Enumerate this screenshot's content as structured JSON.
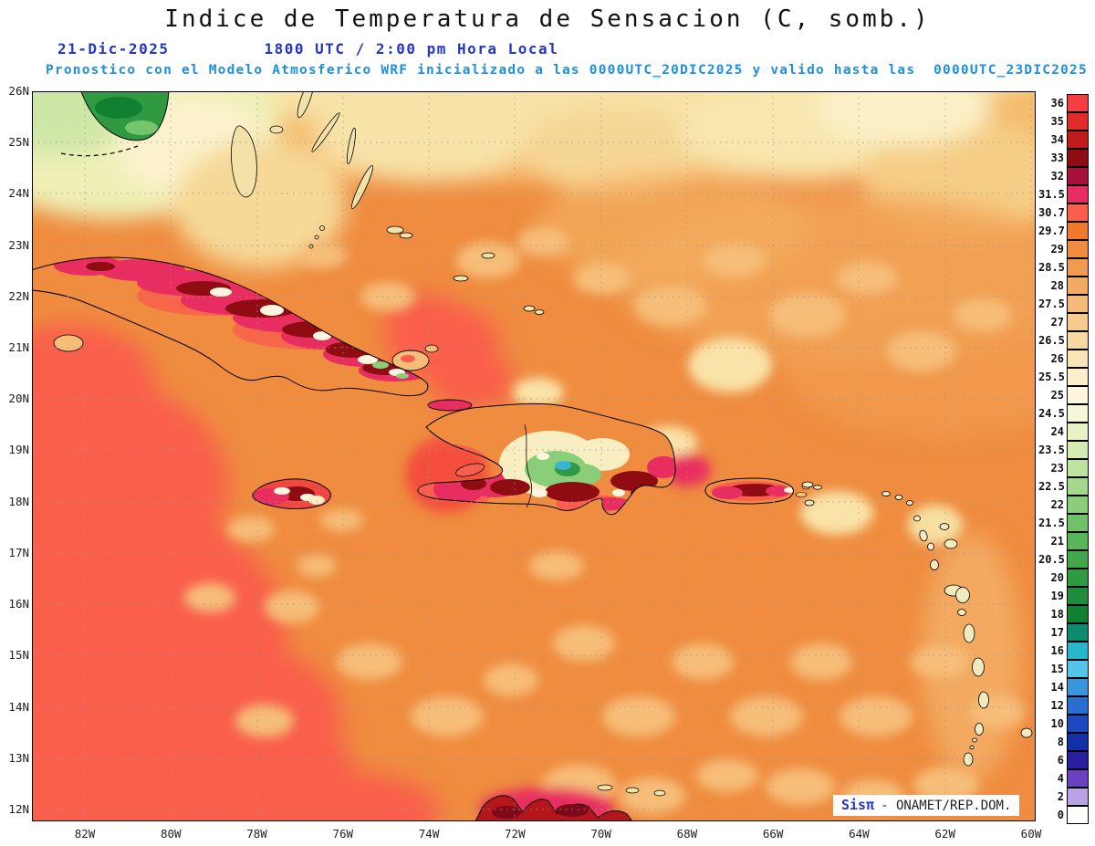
{
  "header": {
    "title": "Indice de Temperatura de Sensacion (C, somb.)",
    "date": "21-Dic-2025",
    "time": "1800 UTC / 2:00 pm Hora Local",
    "forecast": "Pronostico con el Modelo Atmosferico WRF inicializado a las 0000UTC_20DIC2025 y valido hasta las  0000UTC_23DIC2025"
  },
  "colors": {
    "date_line": "#2336c4",
    "forecast_line": "#1d8fe0",
    "brand": "#2336c4",
    "dominant_field": "#ef8c3f"
  },
  "axes": {
    "lat_labels": [
      "26N",
      "25N",
      "24N",
      "23N",
      "22N",
      "21N",
      "20N",
      "19N",
      "18N",
      "17N",
      "16N",
      "15N",
      "14N",
      "13N",
      "12N"
    ],
    "lon_labels": [
      "82W",
      "80W",
      "78W",
      "76W",
      "74W",
      "72W",
      "70W",
      "68W",
      "66W",
      "64W",
      "62W",
      "60W"
    ]
  },
  "colorbar": {
    "entries": [
      {
        "value": "36",
        "color": "#f73e3e"
      },
      {
        "value": "35",
        "color": "#e22c2c"
      },
      {
        "value": "34",
        "color": "#c11b1b"
      },
      {
        "value": "33",
        "color": "#8f0d12"
      },
      {
        "value": "32",
        "color": "#a8113c"
      },
      {
        "value": "31.5",
        "color": "#e82d60"
      },
      {
        "value": "30.7",
        "color": "#f95f4c"
      },
      {
        "value": "29.7",
        "color": "#f0792e"
      },
      {
        "value": "29",
        "color": "#ef8c3f"
      },
      {
        "value": "28.5",
        "color": "#f19b51"
      },
      {
        "value": "28",
        "color": "#f3aa63"
      },
      {
        "value": "27.5",
        "color": "#f5ba79"
      },
      {
        "value": "27",
        "color": "#f7ca8e"
      },
      {
        "value": "26.5",
        "color": "#f8d9a4"
      },
      {
        "value": "26",
        "color": "#fae5b6"
      },
      {
        "value": "25.5",
        "color": "#fbefc9"
      },
      {
        "value": "25",
        "color": "#fdf8dd"
      },
      {
        "value": "24.5",
        "color": "#f7f7d8"
      },
      {
        "value": "24",
        "color": "#e9f2c5"
      },
      {
        "value": "23.5",
        "color": "#d4ebb2"
      },
      {
        "value": "23",
        "color": "#bce39f"
      },
      {
        "value": "22.5",
        "color": "#a3d98c"
      },
      {
        "value": "22",
        "color": "#8ace7a"
      },
      {
        "value": "21.5",
        "color": "#70c268"
      },
      {
        "value": "21",
        "color": "#58b558"
      },
      {
        "value": "20.5",
        "color": "#42a84b"
      },
      {
        "value": "20",
        "color": "#2f9a41"
      },
      {
        "value": "19",
        "color": "#1f8c39"
      },
      {
        "value": "18",
        "color": "#128031"
      },
      {
        "value": "17",
        "color": "#0e8a6e"
      },
      {
        "value": "16",
        "color": "#29b6c8"
      },
      {
        "value": "15",
        "color": "#55c4ea"
      },
      {
        "value": "14",
        "color": "#3a97dd"
      },
      {
        "value": "12",
        "color": "#2a6fd0"
      },
      {
        "value": "10",
        "color": "#1c49c0"
      },
      {
        "value": "8",
        "color": "#1230a8"
      },
      {
        "value": "6",
        "color": "#2a1f9e"
      },
      {
        "value": "4",
        "color": "#6a42c0"
      },
      {
        "value": "2",
        "color": "#b9a2e6"
      },
      {
        "value": "0",
        "color": "#ffffff"
      }
    ]
  },
  "credit": {
    "brand": "Sisπ",
    "text": "- ONAMET/REP.DOM."
  }
}
